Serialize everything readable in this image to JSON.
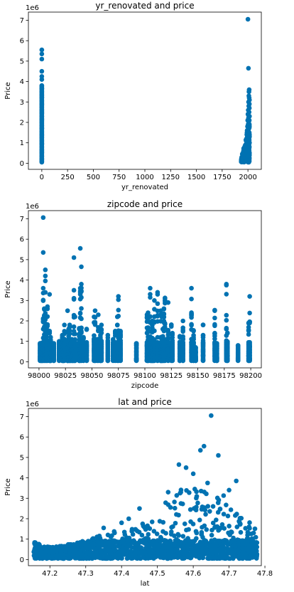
{
  "chart_data": [
    {
      "type": "scatter",
      "title": "yr_renovated and price",
      "xlabel": "yr_renovated",
      "ylabel": "Price",
      "y_offset_label": "1e6",
      "xlim": [
        -130,
        2130
      ],
      "ylim": [
        -0.3,
        7.4
      ],
      "xticks": [
        0,
        250,
        500,
        750,
        1000,
        1250,
        1500,
        1750,
        2000
      ],
      "yticks": [
        0,
        1,
        2,
        3,
        4,
        5,
        6,
        7
      ],
      "marker_color": "#0072B2",
      "points": [
        [
          0,
          0.08
        ],
        [
          0,
          0.2
        ],
        [
          0,
          0.35
        ],
        [
          0,
          0.5
        ],
        [
          0,
          0.65
        ],
        [
          0,
          0.8
        ],
        [
          0,
          0.95
        ],
        [
          0,
          1.1
        ],
        [
          0,
          1.25
        ],
        [
          0,
          1.4
        ],
        [
          0,
          1.55
        ],
        [
          0,
          1.7
        ],
        [
          0,
          1.85
        ],
        [
          0,
          2.0
        ],
        [
          0,
          2.15
        ],
        [
          0,
          2.3
        ],
        [
          0,
          2.45
        ],
        [
          0,
          2.6
        ],
        [
          0,
          2.75
        ],
        [
          0,
          2.9
        ],
        [
          0,
          3.05
        ],
        [
          0,
          3.2
        ],
        [
          0,
          3.35
        ],
        [
          0,
          3.5
        ],
        [
          0,
          3.65
        ],
        [
          0,
          3.8
        ],
        [
          0,
          4.1
        ],
        [
          0,
          4.25
        ],
        [
          0,
          4.5
        ],
        [
          0,
          5.1
        ],
        [
          0,
          5.35
        ],
        [
          0,
          5.55
        ],
        [
          1940,
          0.3
        ],
        [
          1945,
          0.45
        ],
        [
          1950,
          0.2
        ],
        [
          1955,
          0.55
        ],
        [
          1958,
          0.35
        ],
        [
          1960,
          0.5
        ],
        [
          1962,
          0.25
        ],
        [
          1965,
          0.6
        ],
        [
          1968,
          0.4
        ],
        [
          1970,
          0.7
        ],
        [
          1972,
          0.3
        ],
        [
          1975,
          0.55
        ],
        [
          1977,
          0.9
        ],
        [
          1978,
          0.45
        ],
        [
          1980,
          0.65
        ],
        [
          1982,
          1.1
        ],
        [
          1983,
          0.35
        ],
        [
          1985,
          0.8
        ],
        [
          1986,
          1.2
        ],
        [
          1987,
          0.5
        ],
        [
          1988,
          0.95
        ],
        [
          1989,
          1.4
        ],
        [
          1990,
          0.7
        ],
        [
          1991,
          1.0
        ],
        [
          1992,
          1.6
        ],
        [
          1993,
          0.6
        ],
        [
          1994,
          1.3
        ],
        [
          1995,
          0.9
        ],
        [
          1996,
          1.8
        ],
        [
          1997,
          1.1
        ],
        [
          1998,
          2.1
        ],
        [
          1999,
          0.8
        ],
        [
          2000,
          1.5
        ],
        [
          2000,
          2.4
        ],
        [
          2001,
          1.2
        ],
        [
          2002,
          1.9
        ],
        [
          2002,
          0.4
        ],
        [
          2003,
          2.6
        ],
        [
          2003,
          1.0
        ],
        [
          2004,
          1.6
        ],
        [
          2005,
          2.2
        ],
        [
          2005,
          0.6
        ],
        [
          2006,
          3.0
        ],
        [
          2006,
          1.3
        ],
        [
          2007,
          2.0
        ],
        [
          2007,
          0.9
        ],
        [
          2008,
          1.4
        ],
        [
          2008,
          2.8
        ],
        [
          2009,
          1.1
        ],
        [
          2009,
          3.3
        ],
        [
          2010,
          0.7
        ],
        [
          2010,
          1.7
        ],
        [
          2011,
          2.5
        ],
        [
          2011,
          1.2
        ],
        [
          2012,
          1.0
        ],
        [
          2012,
          3.6
        ],
        [
          2013,
          2.1
        ],
        [
          2013,
          1.5
        ],
        [
          2014,
          0.8
        ],
        [
          2014,
          2.9
        ],
        [
          2014,
          1.9
        ],
        [
          2015,
          1.3
        ],
        [
          2015,
          2.3
        ],
        [
          2015,
          0.5
        ],
        [
          2015,
          3.1
        ],
        [
          2015,
          1.0
        ],
        [
          2000,
          7.05
        ],
        [
          2005,
          4.65
        ],
        [
          2010,
          3.5
        ],
        [
          2012,
          3.2
        ],
        [
          2014,
          2.7
        ]
      ]
    },
    {
      "type": "scatter",
      "title": "zipcode and price",
      "xlabel": "zipcode",
      "ylabel": "Price",
      "y_offset_label": "1e6",
      "xlim": [
        97990,
        98210
      ],
      "ylim": [
        -0.3,
        7.4
      ],
      "xticks": [
        98000,
        98025,
        98050,
        98075,
        98100,
        98125,
        98150,
        98175,
        98200
      ],
      "yticks": [
        0,
        1,
        2,
        3,
        4,
        5,
        6,
        7
      ],
      "marker_color": "#0072B2",
      "zip_columns": [
        [
          98001,
          0.9
        ],
        [
          98002,
          0.6
        ],
        [
          98003,
          0.9
        ],
        [
          98004,
          3.6
        ],
        [
          98005,
          2.6
        ],
        [
          98006,
          4.5
        ],
        [
          98007,
          1.6
        ],
        [
          98008,
          2.7
        ],
        [
          98010,
          1.5
        ],
        [
          98011,
          1.2
        ],
        [
          98014,
          0.9
        ],
        [
          98019,
          1.0
        ],
        [
          98022,
          1.3
        ],
        [
          98023,
          1.1
        ],
        [
          98024,
          1.8
        ],
        [
          98027,
          2.5
        ],
        [
          98028,
          1.6
        ],
        [
          98029,
          1.8
        ],
        [
          98030,
          0.9
        ],
        [
          98031,
          1.1
        ],
        [
          98032,
          0.6
        ],
        [
          98033,
          3.5
        ],
        [
          98034,
          2.2
        ],
        [
          98038,
          1.6
        ],
        [
          98039,
          3.6
        ],
        [
          98040,
          3.8
        ],
        [
          98042,
          1.2
        ],
        [
          98045,
          1.6
        ],
        [
          98052,
          2.2
        ],
        [
          98053,
          2.5
        ],
        [
          98055,
          1.1
        ],
        [
          98056,
          2.3
        ],
        [
          98058,
          1.3
        ],
        [
          98059,
          1.8
        ],
        [
          98065,
          1.3
        ],
        [
          98070,
          1.1
        ],
        [
          98072,
          1.5
        ],
        [
          98074,
          2.2
        ],
        [
          98075,
          3.2
        ],
        [
          98077,
          1.5
        ],
        [
          98092,
          0.9
        ],
        [
          98102,
          2.3
        ],
        [
          98103,
          2.4
        ],
        [
          98105,
          3.6
        ],
        [
          98106,
          0.9
        ],
        [
          98107,
          2.0
        ],
        [
          98108,
          1.1
        ],
        [
          98109,
          3.0
        ],
        [
          98112,
          3.4
        ],
        [
          98115,
          2.5
        ],
        [
          98116,
          2.2
        ],
        [
          98117,
          1.6
        ],
        [
          98118,
          2.6
        ],
        [
          98119,
          3.1
        ],
        [
          98122,
          2.9
        ],
        [
          98125,
          1.8
        ],
        [
          98126,
          1.4
        ],
        [
          98133,
          1.2
        ],
        [
          98136,
          2.0
        ],
        [
          98144,
          3.6
        ],
        [
          98146,
          1.5
        ],
        [
          98148,
          0.7
        ],
        [
          98155,
          1.8
        ],
        [
          98166,
          2.5
        ],
        [
          98168,
          0.9
        ],
        [
          98177,
          3.8
        ],
        [
          98178,
          1.4
        ],
        [
          98188,
          0.8
        ],
        [
          98198,
          1.9
        ],
        [
          98199,
          3.2
        ]
      ],
      "outliers": [
        [
          98004,
          7.06
        ],
        [
          98004,
          5.35
        ],
        [
          98006,
          4.2
        ],
        [
          98010,
          3.3
        ],
        [
          98033,
          5.1
        ],
        [
          98039,
          5.55
        ],
        [
          98040,
          4.65
        ],
        [
          98039,
          3.3
        ],
        [
          98112,
          3.3
        ],
        [
          98177,
          3.75
        ]
      ]
    },
    {
      "type": "scatter",
      "title": "lat and price",
      "xlabel": "lat",
      "ylabel": "Price",
      "y_offset_label": "1e6",
      "xlim": [
        47.14,
        47.79
      ],
      "ylim": [
        -0.3,
        7.4
      ],
      "xticks": [
        47.2,
        47.3,
        47.4,
        47.5,
        47.6,
        47.7,
        47.8
      ],
      "yticks": [
        0,
        1,
        2,
        3,
        4,
        5,
        6,
        7
      ],
      "marker_color": "#0072B2",
      "envelope": [
        [
          47.16,
          0.8
        ],
        [
          47.2,
          0.55
        ],
        [
          47.25,
          0.7
        ],
        [
          47.3,
          0.9
        ],
        [
          47.35,
          1.2
        ],
        [
          47.4,
          1.5
        ],
        [
          47.45,
          1.6
        ],
        [
          47.5,
          2.3
        ],
        [
          47.53,
          3.0
        ],
        [
          47.56,
          3.6
        ],
        [
          47.59,
          3.3
        ],
        [
          47.62,
          3.7
        ],
        [
          47.65,
          3.3
        ],
        [
          47.68,
          3.2
        ],
        [
          47.7,
          2.8
        ],
        [
          47.73,
          2.0
        ],
        [
          47.76,
          1.9
        ],
        [
          47.78,
          1.6
        ]
      ],
      "outliers": [
        [
          47.16,
          0.75
        ],
        [
          47.17,
          0.68
        ],
        [
          47.65,
          7.05
        ],
        [
          47.63,
          5.55
        ],
        [
          47.62,
          5.35
        ],
        [
          47.67,
          5.1
        ],
        [
          47.56,
          4.65
        ],
        [
          47.58,
          4.5
        ],
        [
          47.6,
          4.2
        ],
        [
          47.64,
          3.75
        ],
        [
          47.72,
          3.85
        ],
        [
          47.53,
          3.3
        ],
        [
          47.7,
          3.4
        ],
        [
          47.45,
          2.5
        ],
        [
          47.35,
          1.55
        ],
        [
          47.42,
          2.0
        ],
        [
          47.4,
          1.8
        ]
      ]
    }
  ]
}
